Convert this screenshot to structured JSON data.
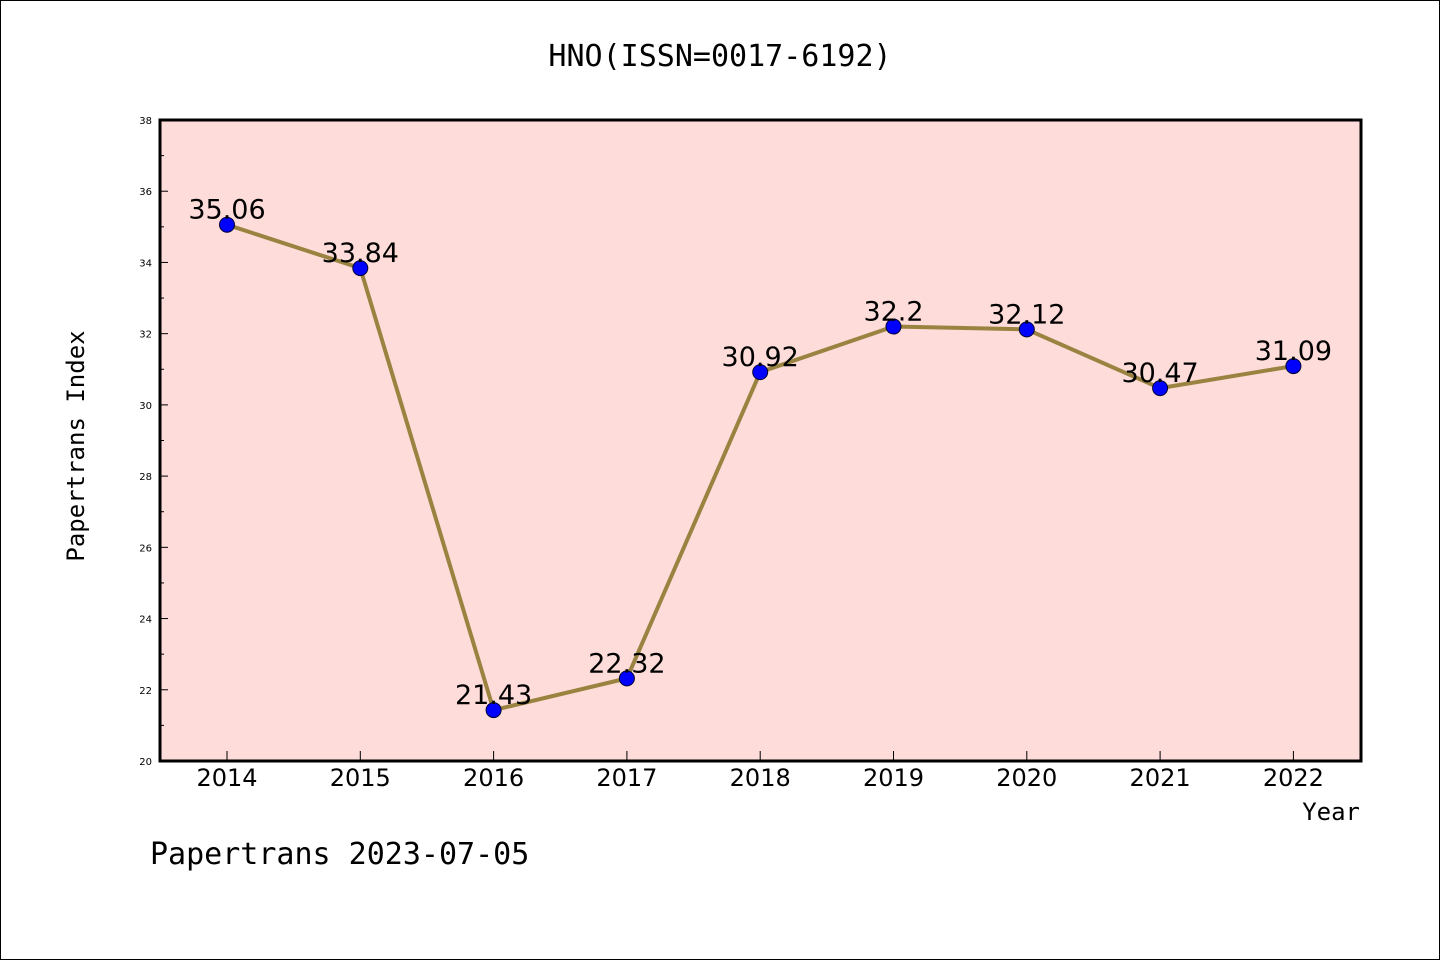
{
  "chart_data": {
    "type": "line",
    "title": "HNO(ISSN=0017-6192)",
    "xlabel": "Year",
    "ylabel": "Papertrans Index",
    "categories": [
      "2014",
      "2015",
      "2016",
      "2017",
      "2018",
      "2019",
      "2020",
      "2021",
      "2022"
    ],
    "values": [
      35.06,
      33.84,
      21.43,
      22.32,
      30.92,
      32.2,
      32.12,
      30.47,
      31.09
    ],
    "data_labels": [
      "35.06",
      "33.84",
      "21.43",
      "22.32",
      "30.92",
      "32.2",
      "32.12",
      "30.47",
      "31.09"
    ],
    "ylim": [
      20,
      38
    ],
    "yticks": [
      20,
      22,
      24,
      26,
      28,
      30,
      32,
      34,
      36,
      38
    ],
    "grid": false,
    "colors": {
      "plot_background": "#fddcd9",
      "line": "#9a8340",
      "marker": "#0000ff"
    }
  },
  "footer": {
    "text": "Papertrans 2023-07-05"
  }
}
